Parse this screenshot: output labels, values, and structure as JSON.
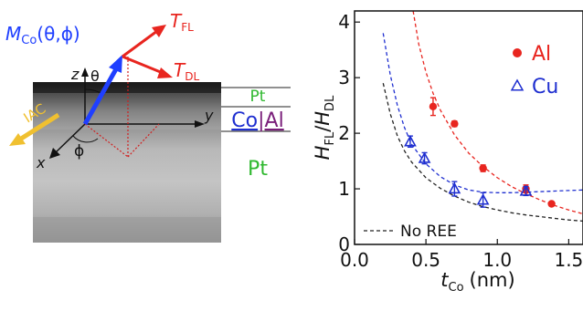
{
  "left_panel": {
    "m_label": "M",
    "m_sub": "Co",
    "m_args": "(θ,ϕ)",
    "tfl_label": "T",
    "tfl_sub": "FL",
    "tdl_label": "T",
    "tdl_sub": "DL",
    "axis_z": "z",
    "axis_y": "y",
    "axis_x": "x",
    "theta": "θ",
    "phi": "ϕ",
    "current": "IAC",
    "layer_top": "Pt",
    "layer_mid_co": "Co",
    "layer_mid_sep": "|",
    "layer_mid_al": "Al",
    "layer_bottom": "Pt",
    "colors": {
      "magnetization": "#1f3fff",
      "torque": "#e8251f",
      "pt_text": "#2fb82f",
      "co_text": "#1f2fd0",
      "al_text": "#7a1f7a",
      "current": "#f0c030"
    }
  },
  "chart_data": {
    "type": "scatter",
    "xlabel_main": "t",
    "xlabel_sub": "Co",
    "xlabel_unit": "(nm)",
    "ylabel_num": "H",
    "ylabel_num_sub": "FL",
    "ylabel_den": "H",
    "ylabel_den_sub": "DL",
    "ylabel_sep": "/",
    "xlim": [
      0.0,
      1.6
    ],
    "ylim": [
      0,
      4.2
    ],
    "xticks": [
      0.0,
      0.5,
      1.0,
      1.5
    ],
    "xtick_labels": [
      "0.0",
      "0.5",
      "1.0",
      "1.5"
    ],
    "yticks": [
      0,
      1,
      2,
      3,
      4
    ],
    "ytick_labels": [
      "0",
      "1",
      "2",
      "3",
      "4"
    ],
    "grid": false,
    "legend_position": "top-right",
    "series": [
      {
        "name": "Al",
        "marker": "filled-circle",
        "color": "#e8251f",
        "points": [
          {
            "x": 0.55,
            "y": 2.48,
            "err": 0.16
          },
          {
            "x": 0.7,
            "y": 2.17,
            "err": 0.05
          },
          {
            "x": 0.9,
            "y": 1.37,
            "err": 0.06
          },
          {
            "x": 1.2,
            "y": 1.0,
            "err": 0.07
          },
          {
            "x": 1.38,
            "y": 0.73,
            "err": 0.03
          }
        ]
      },
      {
        "name": "Cu",
        "marker": "open-triangle",
        "color": "#1f2fd0",
        "points": [
          {
            "x": 0.39,
            "y": 1.85,
            "err": 0.1
          },
          {
            "x": 0.49,
            "y": 1.55,
            "err": 0.1
          },
          {
            "x": 0.7,
            "y": 1.0,
            "err": 0.13
          },
          {
            "x": 0.9,
            "y": 0.8,
            "err": 0.13
          },
          {
            "x": 1.2,
            "y": 0.96,
            "err": 0.08
          }
        ]
      }
    ],
    "fits": [
      {
        "series": "Al",
        "style": "dashed",
        "color": "#e8251f",
        "points": [
          [
            0.41,
            4.2
          ],
          [
            0.45,
            3.6
          ],
          [
            0.5,
            3.1
          ],
          [
            0.55,
            2.72
          ],
          [
            0.6,
            2.42
          ],
          [
            0.7,
            1.97
          ],
          [
            0.8,
            1.64
          ],
          [
            0.9,
            1.4
          ],
          [
            1.0,
            1.2
          ],
          [
            1.1,
            1.04
          ],
          [
            1.2,
            0.91
          ],
          [
            1.3,
            0.8
          ],
          [
            1.4,
            0.7
          ],
          [
            1.5,
            0.62
          ],
          [
            1.6,
            0.55
          ]
        ]
      },
      {
        "series": "Cu",
        "style": "dashed",
        "color": "#1f2fd0",
        "points": [
          [
            0.2,
            3.8
          ],
          [
            0.25,
            3.05
          ],
          [
            0.3,
            2.5
          ],
          [
            0.35,
            2.1
          ],
          [
            0.4,
            1.8
          ],
          [
            0.5,
            1.45
          ],
          [
            0.6,
            1.22
          ],
          [
            0.7,
            1.07
          ],
          [
            0.8,
            0.98
          ],
          [
            0.9,
            0.94
          ],
          [
            1.0,
            0.93
          ],
          [
            1.1,
            0.93
          ],
          [
            1.2,
            0.94
          ],
          [
            1.3,
            0.95
          ],
          [
            1.4,
            0.96
          ],
          [
            1.5,
            0.97
          ],
          [
            1.6,
            0.98
          ]
        ]
      },
      {
        "series": "No REE",
        "style": "dashed",
        "color": "#222222",
        "points": [
          [
            0.2,
            2.9
          ],
          [
            0.25,
            2.35
          ],
          [
            0.3,
            1.95
          ],
          [
            0.35,
            1.68
          ],
          [
            0.4,
            1.48
          ],
          [
            0.5,
            1.2
          ],
          [
            0.6,
            1.01
          ],
          [
            0.7,
            0.87
          ],
          [
            0.8,
            0.76
          ],
          [
            0.9,
            0.68
          ],
          [
            1.0,
            0.62
          ],
          [
            1.1,
            0.57
          ],
          [
            1.2,
            0.53
          ],
          [
            1.3,
            0.5
          ],
          [
            1.4,
            0.47
          ],
          [
            1.5,
            0.44
          ],
          [
            1.6,
            0.42
          ]
        ]
      }
    ],
    "legend": [
      {
        "label": "Al",
        "marker": "filled-circle",
        "color": "#e8251f"
      },
      {
        "label": "Cu",
        "marker": "open-triangle",
        "color": "#1f2fd0"
      }
    ],
    "annotation": {
      "label": "No REE",
      "style": "dashed",
      "color": "#222222"
    }
  }
}
